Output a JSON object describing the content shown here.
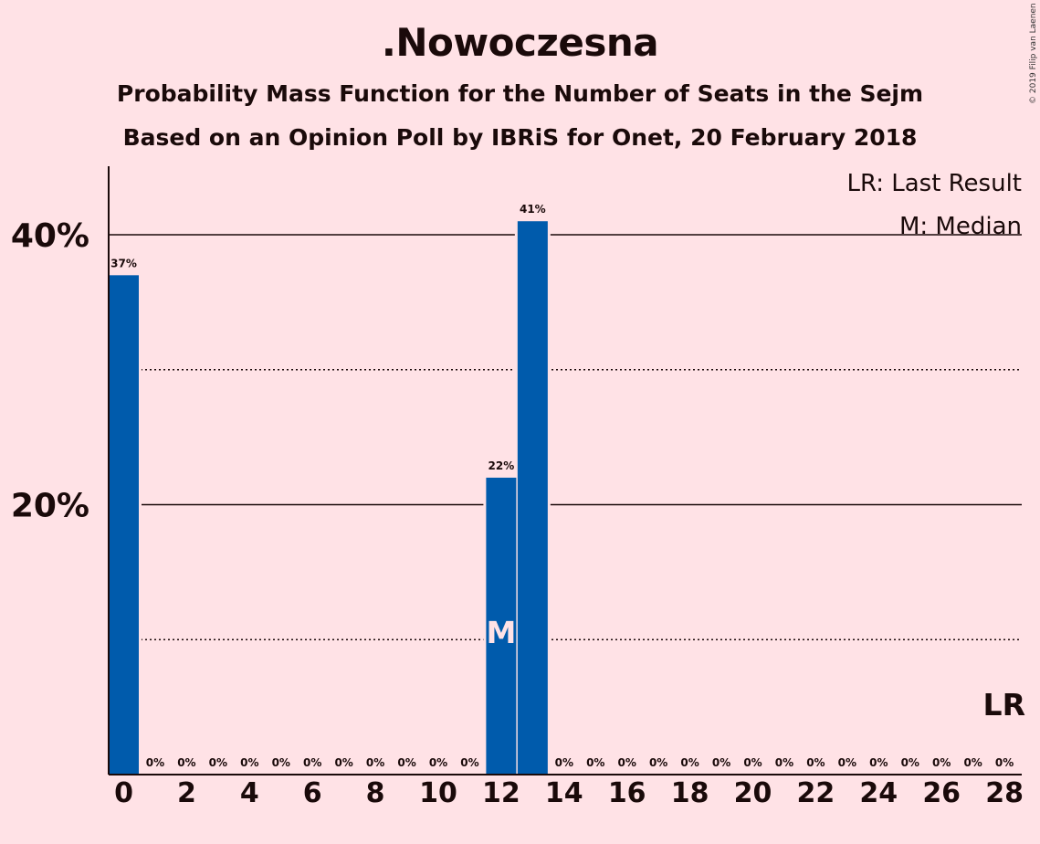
{
  "chart_data": {
    "type": "bar",
    "title": ".Nowoczesna",
    "subtitle": "Probability Mass Function for the Number of Seats in the Sejm",
    "subtitle2": "Based on an Opinion Poll by IBRiS for Onet, 20 February 2018",
    "copyright": "© 2019 Filip van Laenen",
    "x": [
      0,
      1,
      2,
      3,
      4,
      5,
      6,
      7,
      8,
      9,
      10,
      11,
      12,
      13,
      14,
      15,
      16,
      17,
      18,
      19,
      20,
      21,
      22,
      23,
      24,
      25,
      26,
      27,
      28
    ],
    "values": [
      37,
      0,
      0,
      0,
      0,
      0,
      0,
      0,
      0,
      0,
      0,
      0,
      22,
      41,
      0,
      0,
      0,
      0,
      0,
      0,
      0,
      0,
      0,
      0,
      0,
      0,
      0,
      0,
      0
    ],
    "value_labels": [
      "37%",
      "0%",
      "0%",
      "0%",
      "0%",
      "0%",
      "0%",
      "0%",
      "0%",
      "0%",
      "0%",
      "0%",
      "22%",
      "41%",
      "0%",
      "0%",
      "0%",
      "0%",
      "0%",
      "0%",
      "0%",
      "0%",
      "0%",
      "0%",
      "0%",
      "0%",
      "0%",
      "0%",
      "0%"
    ],
    "x_ticks": [
      0,
      2,
      4,
      6,
      8,
      10,
      12,
      14,
      16,
      18,
      20,
      22,
      24,
      26,
      28
    ],
    "y_ticks": [
      {
        "value": 20,
        "label": "20%"
      },
      {
        "value": 40,
        "label": "40%"
      }
    ],
    "dotted_gridlines": [
      10,
      30
    ],
    "solid_gridlines": [
      20,
      40
    ],
    "ylim": [
      0,
      45
    ],
    "median_seat": 12,
    "median_marker": "M",
    "last_result_marker": "LR",
    "last_result_seat": 28,
    "legend": [
      "LR: Last Result",
      "M: Median"
    ],
    "legend_placement": "top-right",
    "colors": {
      "bar": "#005BAC",
      "background": "#FFE2E6",
      "text": "#1a0a0a",
      "marker": "#FFE2E6"
    }
  }
}
